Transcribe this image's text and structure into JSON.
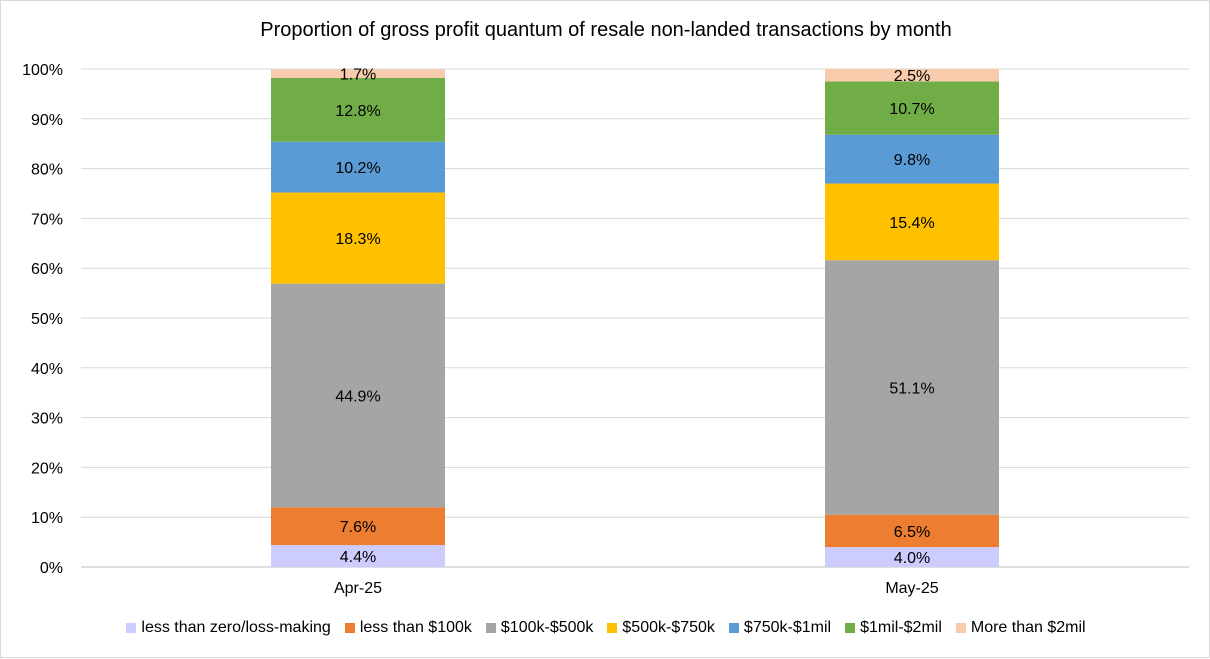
{
  "chart_data": {
    "type": "bar",
    "stacked": "percent",
    "title": "Proportion of gross profit quantum of resale non-landed transactions by month",
    "categories": [
      "Apr-25",
      "May-25"
    ],
    "y_ticks": [
      "0%",
      "10%",
      "20%",
      "30%",
      "40%",
      "50%",
      "60%",
      "70%",
      "80%",
      "90%",
      "100%"
    ],
    "ylim": [
      0,
      100
    ],
    "grid": true,
    "legend_position": "bottom",
    "series": [
      {
        "name": "less than zero/loss-making",
        "color": "#ccccff",
        "values": [
          4.4,
          4.0
        ],
        "labels": [
          "4.4%",
          "4.0%"
        ]
      },
      {
        "name": "less than $100k",
        "color": "#ed7d31",
        "values": [
          7.6,
          6.5
        ],
        "labels": [
          "7.6%",
          "6.5%"
        ]
      },
      {
        "name": "$100k-$500k",
        "color": "#a5a5a5",
        "values": [
          44.9,
          51.1
        ],
        "labels": [
          "44.9%",
          "51.1%"
        ]
      },
      {
        "name": "$500k-$750k",
        "color": "#ffc000",
        "values": [
          18.3,
          15.4
        ],
        "labels": [
          "18.3%",
          "15.4%"
        ]
      },
      {
        "name": "$750k-$1mil",
        "color": "#5b9bd5",
        "values": [
          10.2,
          9.8
        ],
        "labels": [
          "10.2%",
          "9.8%"
        ]
      },
      {
        "name": "$1mil-$2mil",
        "color": "#70ad47",
        "values": [
          12.8,
          10.7
        ],
        "labels": [
          "12.8%",
          "10.7%"
        ]
      },
      {
        "name": "More than $2mil",
        "color": "#f8cbad",
        "values": [
          1.7,
          2.5
        ],
        "labels": [
          "1.7%",
          "2.5%"
        ]
      }
    ]
  }
}
